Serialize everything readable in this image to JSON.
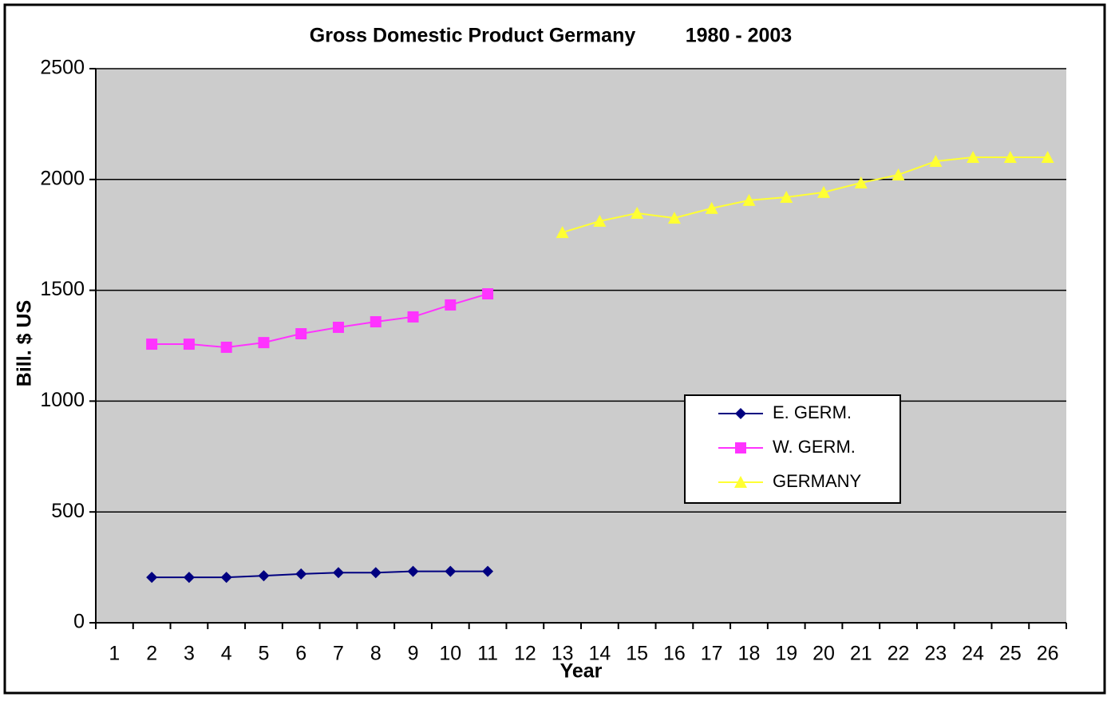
{
  "chart_data": {
    "type": "line",
    "title": "Gross Domestic Product Germany         1980 - 2003",
    "y_label": "Bill. $ US",
    "x_label": "Year",
    "categories": [
      "1",
      "2",
      "3",
      "4",
      "5",
      "6",
      "7",
      "8",
      "9",
      "10",
      "11",
      "12",
      "13",
      "14",
      "15",
      "16",
      "17",
      "18",
      "19",
      "20",
      "21",
      "22",
      "23",
      "24",
      "25",
      "26"
    ],
    "series": [
      {
        "name": "E. GERM.",
        "color": "#000080",
        "marker": "diamond",
        "values": [
          null,
          205,
          205,
          205,
          212,
          220,
          226,
          226,
          232,
          232,
          232,
          null,
          null,
          null,
          null,
          null,
          null,
          null,
          null,
          null,
          null,
          null,
          null,
          null,
          null,
          null
        ]
      },
      {
        "name": "W. GERM.",
        "color": "#ff33ff",
        "marker": "square",
        "values": [
          null,
          1257,
          1257,
          1243,
          1264,
          1304,
          1333,
          1358,
          1380,
          1434,
          1484,
          null,
          null,
          null,
          null,
          null,
          null,
          null,
          null,
          null,
          null,
          null,
          null,
          null,
          null,
          null
        ]
      },
      {
        "name": "GERMANY",
        "color": "#ffff33",
        "marker": "triangle",
        "values": [
          null,
          null,
          null,
          null,
          null,
          null,
          null,
          null,
          null,
          null,
          null,
          null,
          1761,
          1812,
          1848,
          1826,
          1870,
          1906,
          1920,
          1942,
          1985,
          2021,
          2082,
          2100,
          2100,
          2100
        ]
      }
    ],
    "ylim": [
      0,
      2500
    ],
    "yticks": [
      0,
      500,
      1000,
      1500,
      2000,
      2500
    ],
    "grid": true,
    "plot_color": "#cccccc",
    "legend": "right"
  }
}
